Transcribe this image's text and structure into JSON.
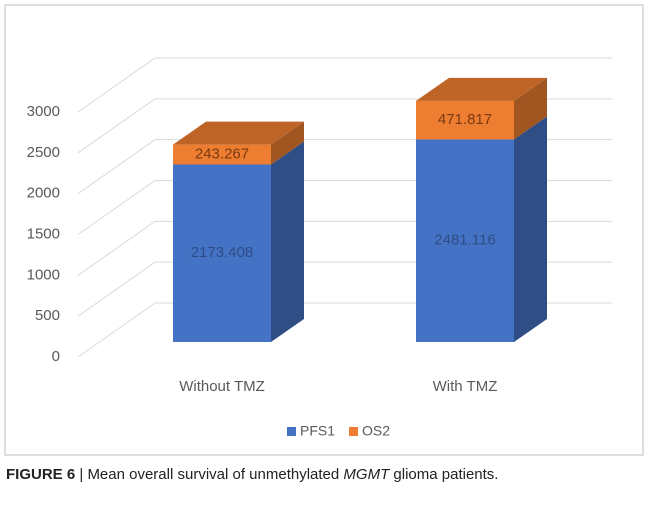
{
  "chart_data": {
    "type": "bar3d-stacked",
    "categories": [
      "Without TMZ",
      "With TMZ"
    ],
    "series": [
      {
        "name": "PFS1",
        "color": "#4472c4",
        "values": [
          2173.408,
          2481.116
        ]
      },
      {
        "name": "OS2",
        "color": "#ed7d31",
        "values": [
          243.267,
          471.817
        ]
      }
    ],
    "ylim": [
      0,
      3000
    ],
    "yticks": [
      0,
      500,
      1000,
      1500,
      2000,
      2500,
      3000
    ],
    "grid": true,
    "legend": "bottom"
  },
  "caption": {
    "label": "FIGURE 6",
    "separator": "|",
    "text_before": "Mean overall survival of unmethylated",
    "italic": "MGMT",
    "text_after": "glioma patients."
  }
}
